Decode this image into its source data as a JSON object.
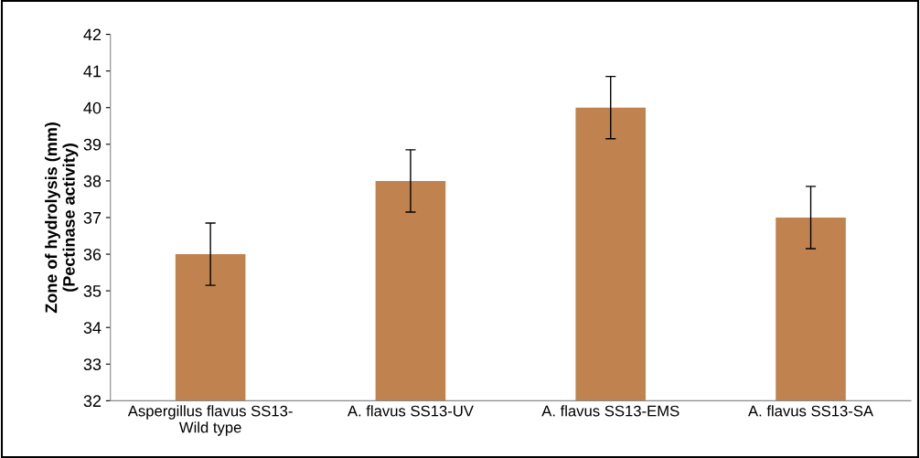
{
  "chart_data": {
    "type": "bar",
    "ylabel": "Zone of hydrolysis (mm)\n(Pectinase activity)",
    "categories": [
      "Aspergillus flavus SS13-Wild type",
      "A. flavus SS13-UV",
      "A. flavus SS13-EMS",
      "A. flavus SS13-SA"
    ],
    "values": [
      36,
      38,
      40,
      37
    ],
    "errors": [
      0.85,
      0.85,
      0.85,
      0.85
    ],
    "color": "#c0834f",
    "ylim": [
      32,
      42
    ],
    "yticks": [
      32,
      33,
      34,
      35,
      36,
      37,
      38,
      39,
      40,
      41,
      42
    ],
    "grid": false
  }
}
